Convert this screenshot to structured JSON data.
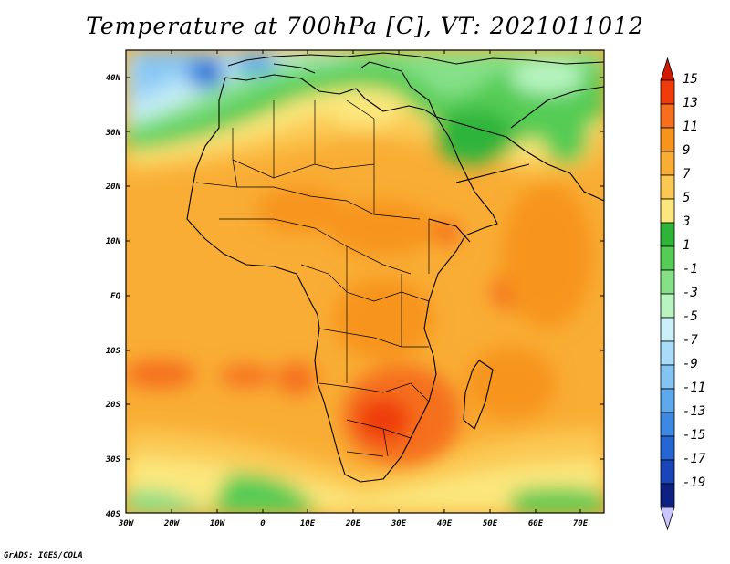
{
  "title": "Temperature at 700hPa [C], VT: 2021011012",
  "credit": "GrADS: IGES/COLA",
  "map": {
    "region": "Africa",
    "variable": "Temperature at 700hPa",
    "units": "C",
    "lon_range": [
      -30,
      75
    ],
    "lat_range": [
      -40,
      45
    ],
    "x_tick_labels": [
      "30W",
      "20W",
      "10W",
      "0",
      "10E",
      "20E",
      "30E",
      "40E",
      "50E",
      "60E",
      "70E"
    ],
    "y_tick_labels": [
      "40N",
      "30N",
      "20N",
      "10N",
      "EQ",
      "10S",
      "20S",
      "30S",
      "40S"
    ]
  },
  "colorbar": {
    "labels": [
      "15",
      "13",
      "11",
      "9",
      "7",
      "5",
      "3",
      "1",
      "-1",
      "-3",
      "-5",
      "-7",
      "-9",
      "-11",
      "-13",
      "-15",
      "-17",
      "-19"
    ],
    "colors": [
      "#d21900",
      "#f03c0a",
      "#f56f1e",
      "#f7941e",
      "#f9ad35",
      "#fbc953",
      "#fbe77d",
      "#2fb43a",
      "#55cc55",
      "#85e088",
      "#b8f4c0",
      "#ccf0f7",
      "#a8dcf7",
      "#84c4f3",
      "#5ea8ec",
      "#3d88e1",
      "#2566d2",
      "#1a45b9",
      "#0e2080",
      "#c9c5ff"
    ]
  }
}
